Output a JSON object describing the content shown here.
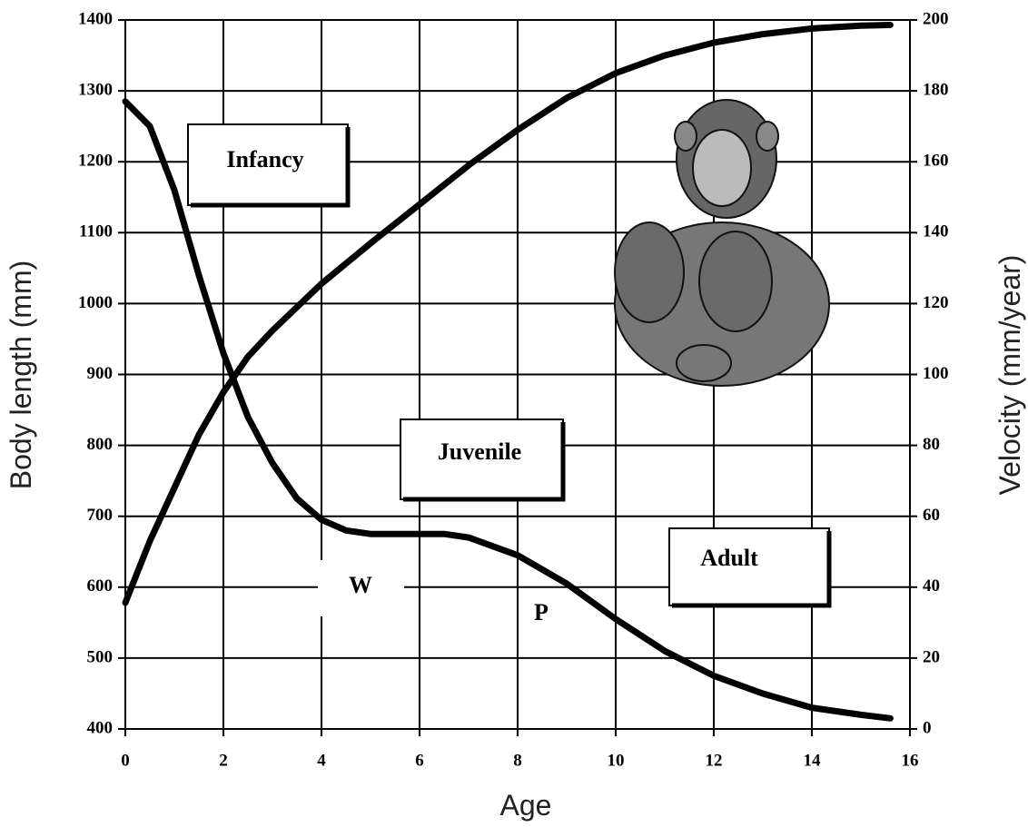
{
  "chart_data": {
    "type": "line",
    "x_label": "Age",
    "y_label": "Body length (mm)",
    "y2_label": "Velocity (mm/year)",
    "xlim": [
      0,
      16
    ],
    "xticks": [
      0,
      2,
      4,
      6,
      8,
      10,
      12,
      14,
      16
    ],
    "ylim": [
      400,
      1400
    ],
    "yticks": [
      400,
      500,
      600,
      700,
      800,
      900,
      1000,
      1100,
      1200,
      1300,
      1400
    ],
    "y2lim": [
      0,
      200
    ],
    "y2ticks": [
      0,
      20,
      40,
      60,
      80,
      100,
      120,
      140,
      160,
      180,
      200
    ],
    "grid": true,
    "series": [
      {
        "color": "#000000",
        "x": [
          0,
          0.5,
          1,
          1.5,
          2,
          2.5,
          3,
          4,
          5,
          6,
          7,
          8,
          9,
          10,
          11,
          12,
          13,
          14,
          15,
          15.6
        ],
        "values": [
          578,
          665,
          740,
          815,
          875,
          925,
          962,
          1028,
          1085,
          1140,
          1195,
          1245,
          1290,
          1325,
          1350,
          1368,
          1380,
          1388,
          1392,
          1393
        ]
      },
      {
        "color": "#000000",
        "axis": "y2",
        "x": [
          0,
          0.5,
          1,
          1.5,
          2,
          2.5,
          3,
          3.5,
          4,
          4.5,
          5,
          6,
          6.5,
          7,
          8,
          9,
          10,
          11,
          12,
          13,
          14,
          15,
          15.6
        ],
        "values": [
          177,
          170,
          152,
          128,
          106,
          88,
          75,
          65,
          59,
          56,
          55,
          55,
          55,
          54,
          49,
          41,
          31,
          22,
          15,
          10,
          6,
          4,
          3
        ]
      }
    ],
    "annotations": [
      "Infancy",
      "Juvenile",
      "Adult",
      "W",
      "P"
    ]
  }
}
